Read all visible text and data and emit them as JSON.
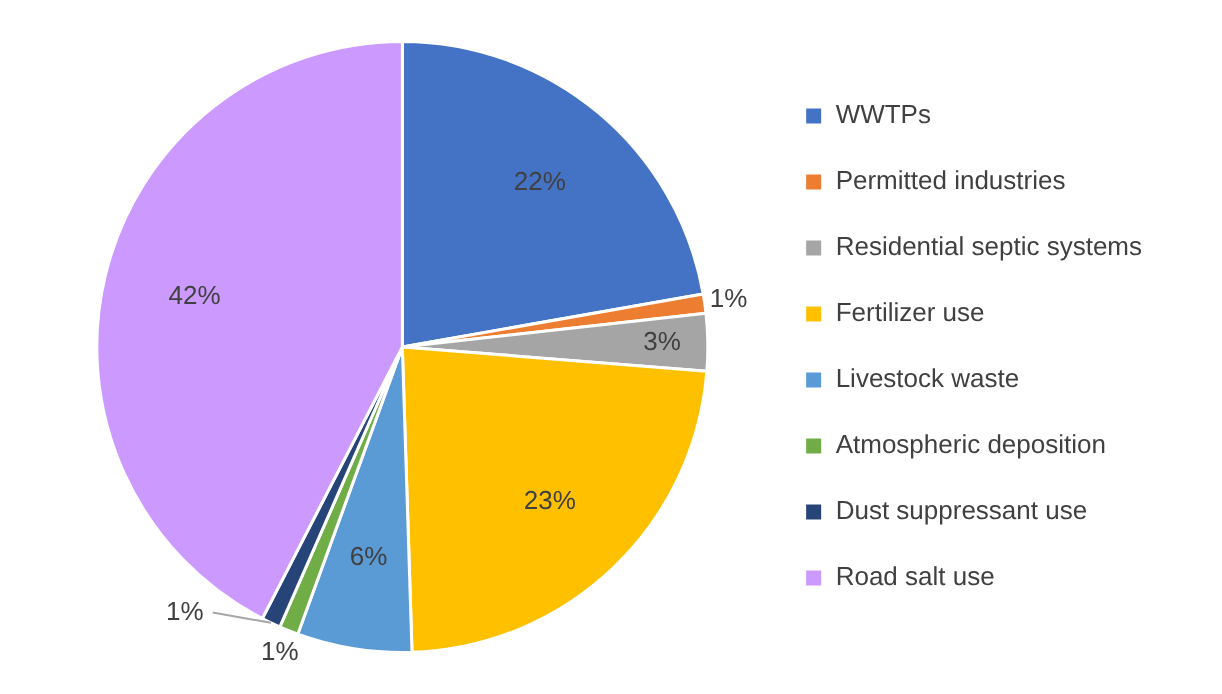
{
  "chart_data": {
    "type": "pie",
    "categories": [
      "WWTPs",
      "Permitted industries",
      "Residential septic systems",
      "Fertilizer use",
      "Livestock waste",
      "Atmospheric deposition",
      "Dust suppressant use",
      "Road salt use"
    ],
    "values": [
      22,
      1,
      3,
      23,
      6,
      1,
      1,
      42
    ],
    "value_labels": [
      "22%",
      "1%",
      "3%",
      "23%",
      "6%",
      "1%",
      "1%",
      "42%"
    ],
    "colors": [
      "#4472c4",
      "#ed7d31",
      "#a5a5a5",
      "#ffc000",
      "#5b9bd5",
      "#70ad47",
      "#264478",
      "#cc99ff"
    ],
    "legend": "right"
  }
}
